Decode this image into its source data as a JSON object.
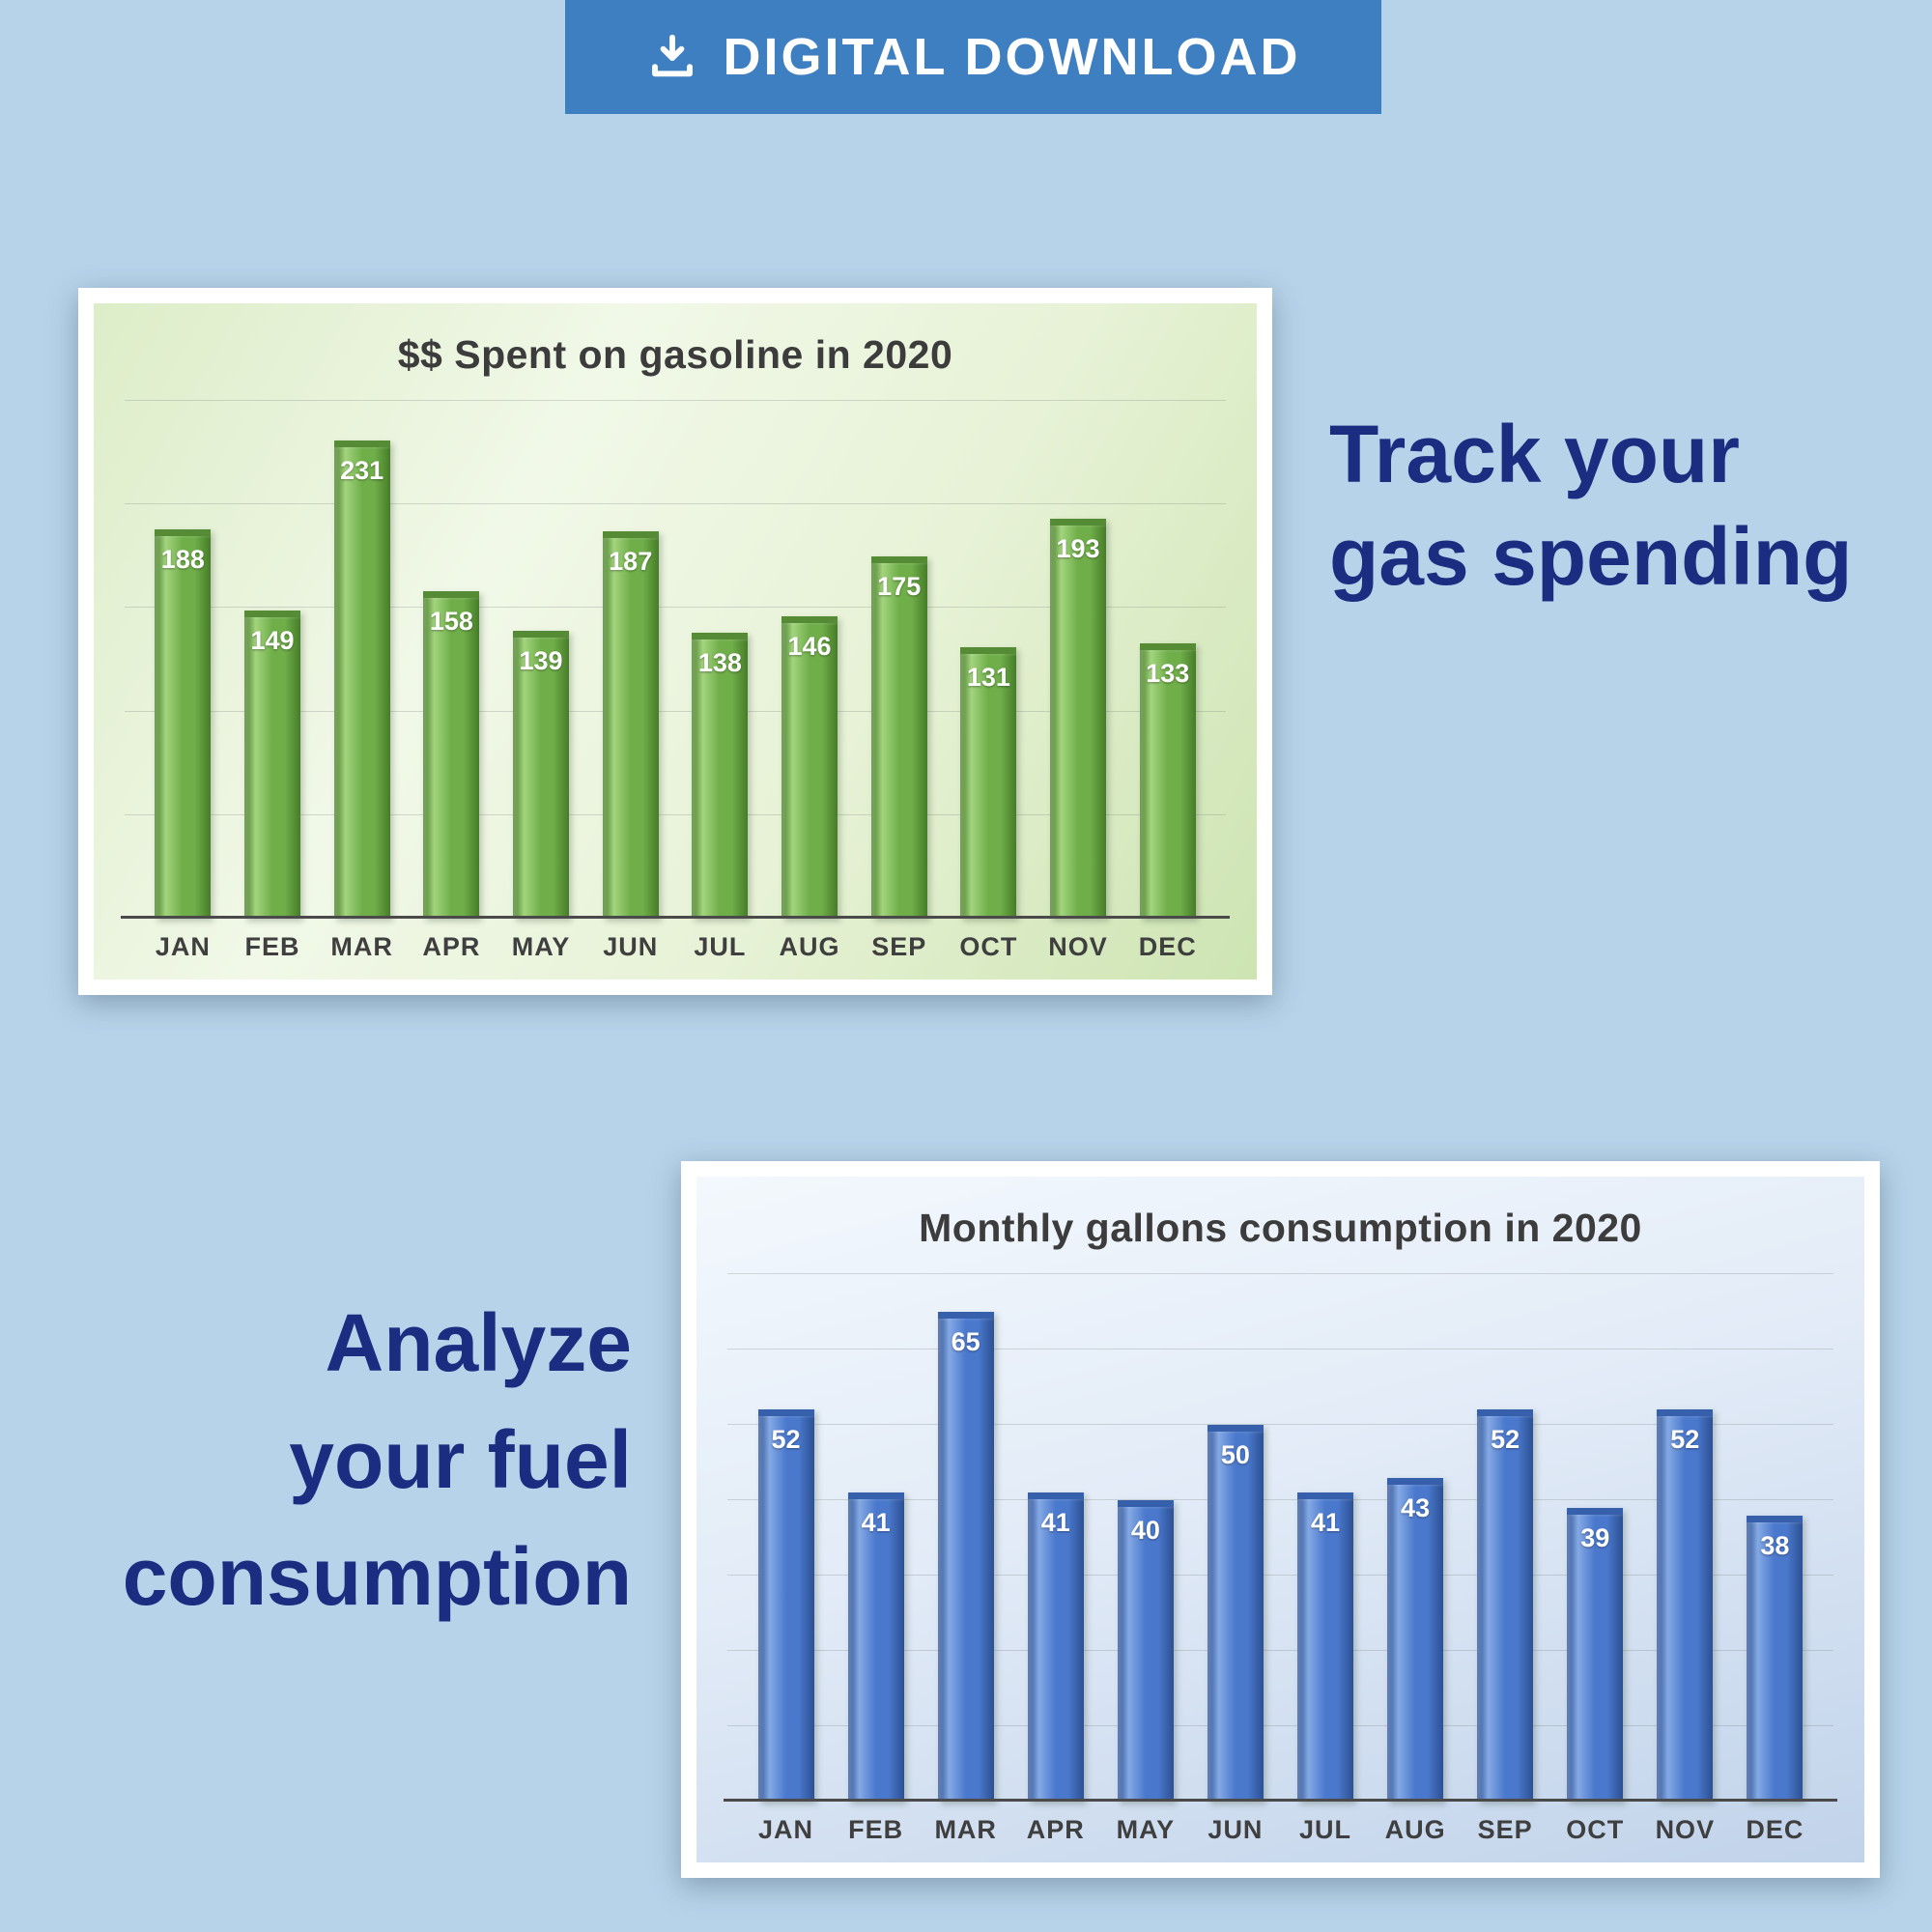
{
  "banner": {
    "label": "DIGITAL DOWNLOAD",
    "bg_color": "#3e7fc1",
    "icon": "download-icon"
  },
  "headline_right": {
    "lines": [
      "Track your",
      "gas spending"
    ],
    "color": "#1a2d80"
  },
  "headline_left": {
    "lines": [
      "Analyze",
      "your fuel",
      "consumption"
    ],
    "color": "#1a2d80"
  },
  "colors": {
    "page_background": "#b6d3ea",
    "green_bar": "#6fae49",
    "blue_bar": "#4a78cc",
    "chart_title_text": "#3c3c3c",
    "headline_text": "#1a2d80"
  },
  "chart_data": [
    {
      "type": "bar",
      "title": "$$ Spent on gasoline in 2020",
      "categories": [
        "JAN",
        "FEB",
        "MAR",
        "APR",
        "MAY",
        "JUN",
        "JUL",
        "AUG",
        "SEP",
        "OCT",
        "NOV",
        "DEC"
      ],
      "values": [
        188,
        149,
        231,
        158,
        139,
        187,
        138,
        146,
        175,
        131,
        193,
        133
      ],
      "xlabel": "",
      "ylabel": "",
      "ylim": [
        0,
        250
      ],
      "grid": true,
      "grid_step": 50,
      "legend": "none",
      "value_labels": true,
      "bar_colors": {
        "base": "#6fae49",
        "light": "#a3d47e",
        "dark": "#467c28",
        "cap": "#558b34"
      }
    },
    {
      "type": "bar",
      "title": "Monthly gallons consumption in 2020",
      "categories": [
        "JAN",
        "FEB",
        "MAR",
        "APR",
        "MAY",
        "JUN",
        "JUL",
        "AUG",
        "SEP",
        "OCT",
        "NOV",
        "DEC"
      ],
      "values": [
        52,
        41,
        65,
        41,
        40,
        50,
        41,
        43,
        52,
        39,
        52,
        38
      ],
      "xlabel": "",
      "ylabel": "",
      "ylim": [
        0,
        70
      ],
      "grid": true,
      "grid_step": 10,
      "legend": "none",
      "value_labels": true,
      "bar_colors": {
        "base": "#4a78cc",
        "light": "#84a9e4",
        "dark": "#2c5093",
        "cap": "#3660ab"
      }
    }
  ]
}
